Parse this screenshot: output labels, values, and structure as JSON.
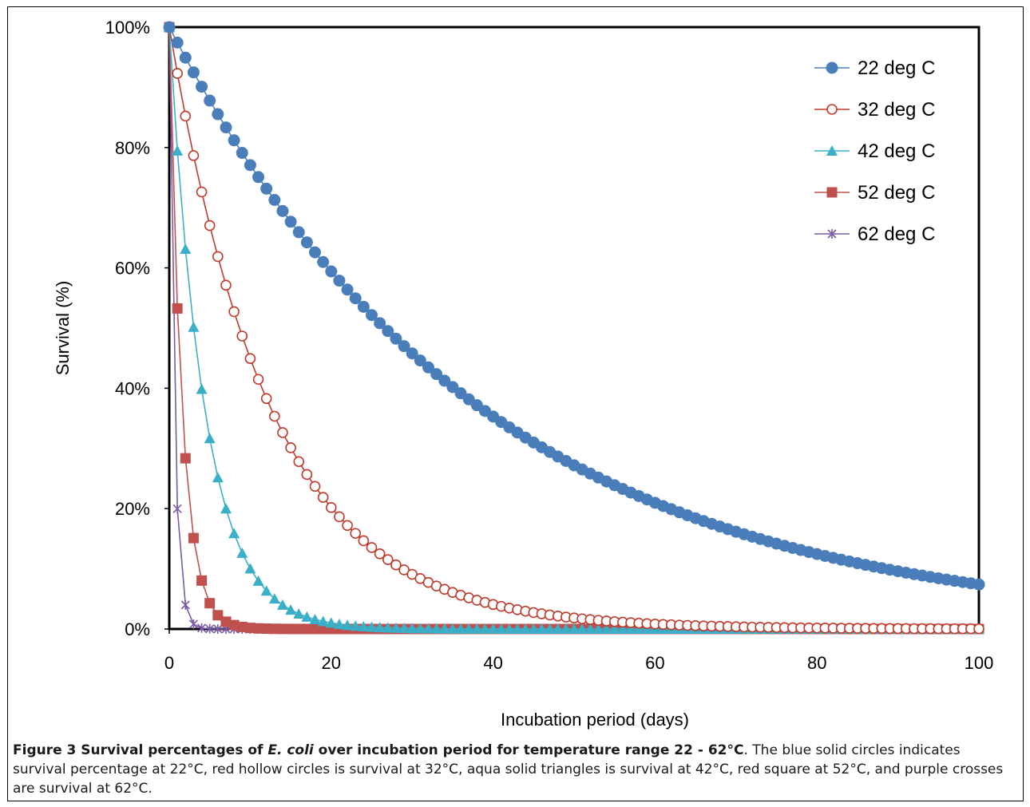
{
  "chart_data": {
    "type": "line",
    "title": "",
    "xlabel": "Incubation period (days)",
    "ylabel": "Survival (%)",
    "xlim": [
      0,
      100
    ],
    "ylim": [
      0,
      100
    ],
    "x_ticks": [
      "0",
      "20",
      "40",
      "60",
      "80",
      "100"
    ],
    "y_ticks": [
      "0%",
      "20%",
      "40%",
      "60%",
      "80%",
      "100%"
    ],
    "grid": false,
    "legend_position": "top-right",
    "x_step": 1,
    "x_max": 100,
    "series": [
      {
        "name": "22 deg C",
        "color": "#4a7ebb",
        "marker": "filled-circle",
        "decay_rate_per_day": 0.026,
        "start_value": 100,
        "end_value_at_day_100": 7.4
      },
      {
        "name": "32 deg C",
        "color": "#c0392b",
        "marker": "hollow-circle",
        "decay_rate_per_day": 0.08,
        "start_value": 100,
        "end_value_at_day_100": 0
      },
      {
        "name": "42 deg C",
        "color": "#3ab0c8",
        "marker": "filled-triangle",
        "decay_rate_per_day": 0.23,
        "start_value": 100,
        "end_value_at_day_100": 0
      },
      {
        "name": "52 deg C",
        "color": "#c0504d",
        "marker": "filled-square",
        "decay_rate_per_day": 0.63,
        "start_value": 100,
        "end_value_at_day_100": 0
      },
      {
        "name": "62 deg C",
        "color": "#7b5aa6",
        "marker": "star-cross",
        "decay_rate_per_day": 1.61,
        "start_value": 100,
        "end_value_at_day_100": 0
      }
    ]
  },
  "caption": {
    "label": "Figure 3 Survival percentages of ",
    "organism": "E. coli",
    "label_rest": " over incubation period for temperature range 22 - 62°C",
    "body": ". The blue solid circles indicates survival percentage at 22°C, red hollow circles is survival at 32°C, aqua solid triangles is survival at 42°C, red square at 52°C, and purple crosses are survival at 62°C."
  }
}
